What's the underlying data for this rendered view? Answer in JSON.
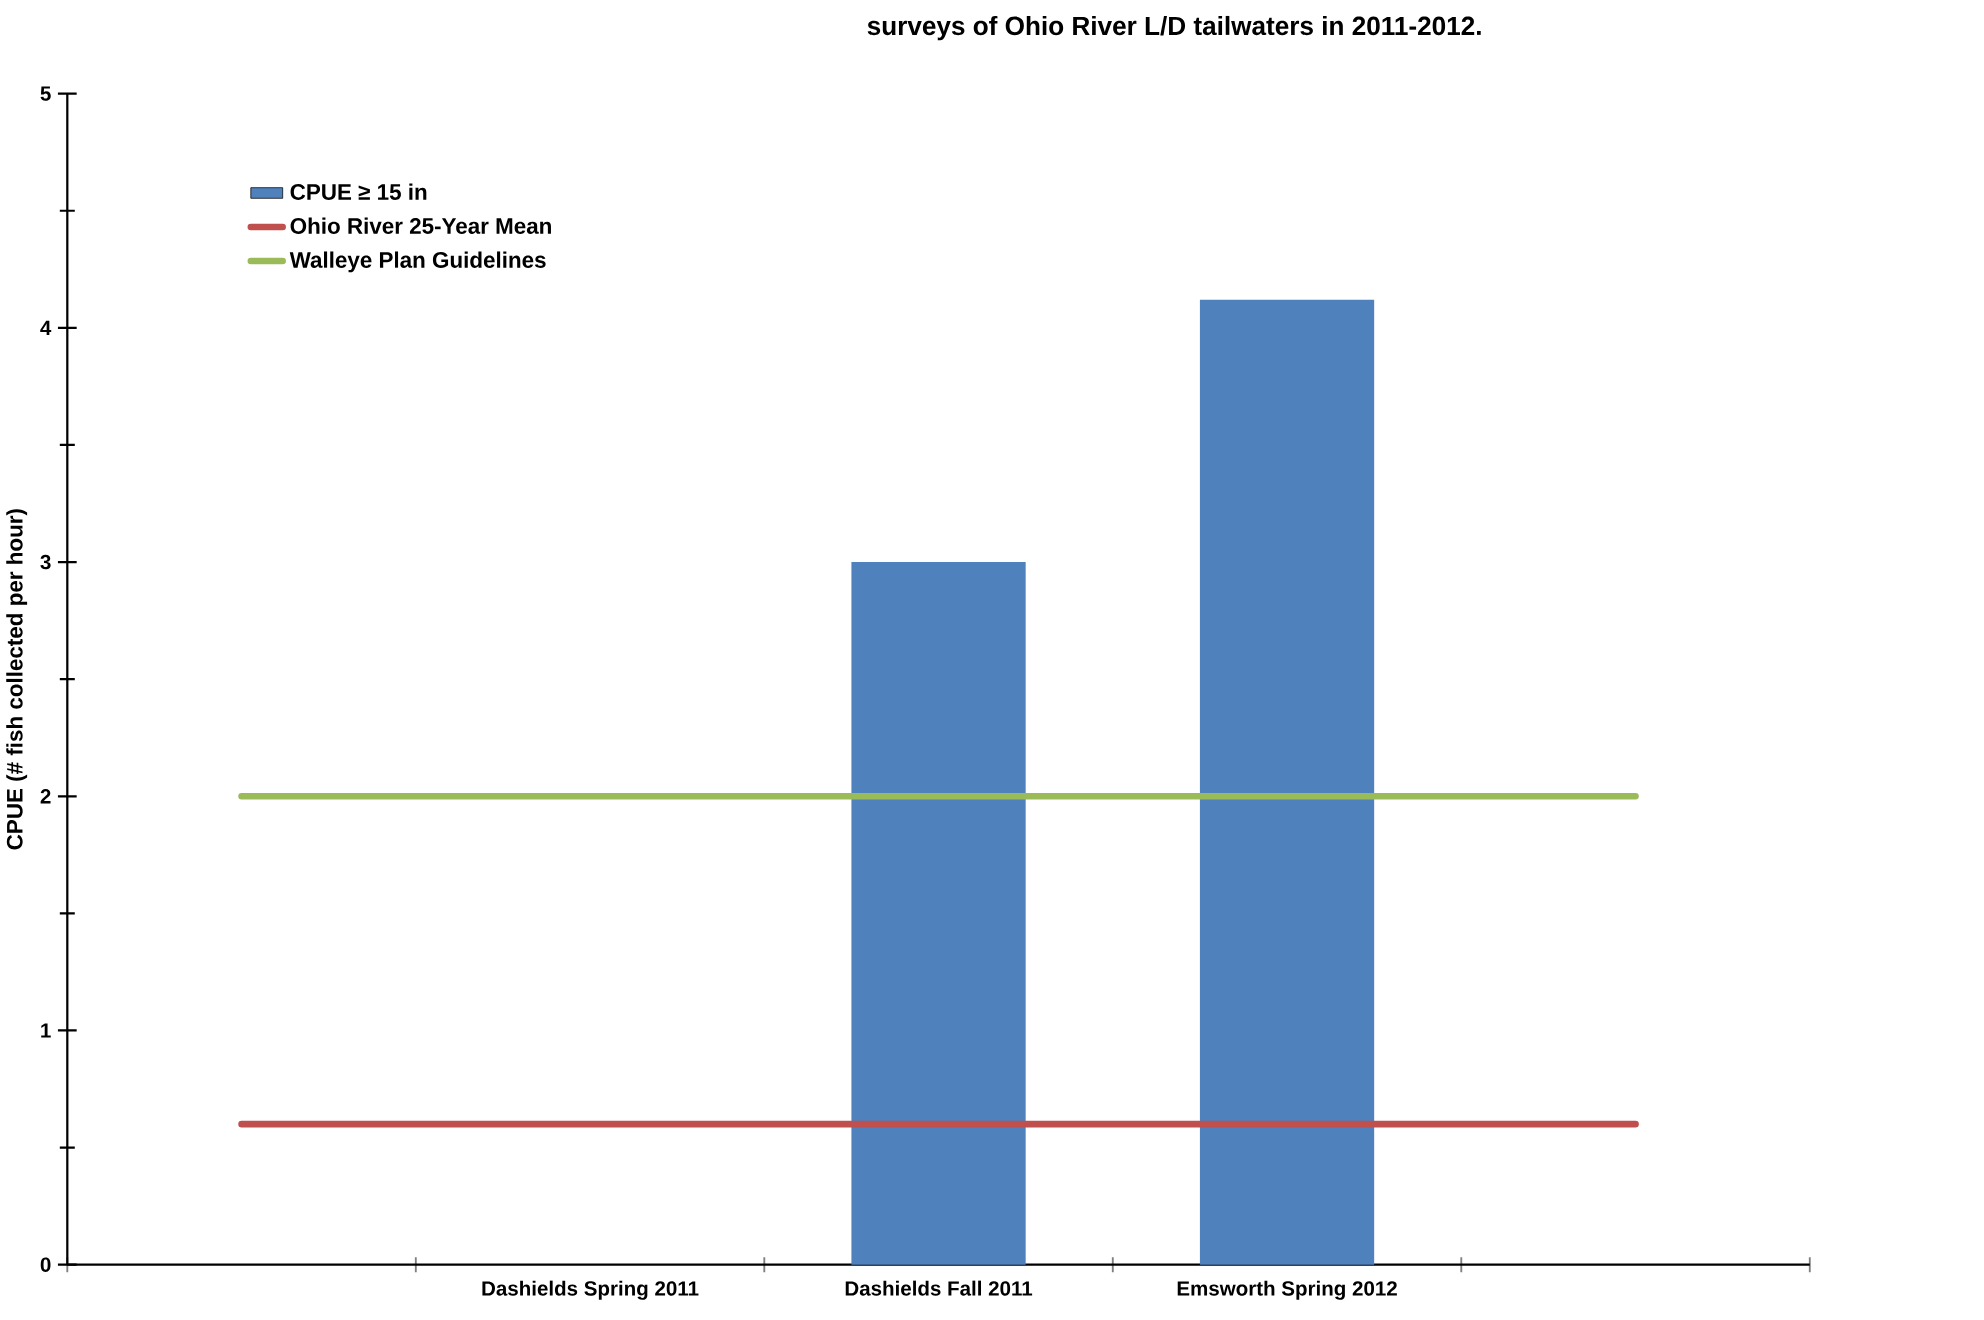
{
  "chart_data": {
    "type": "bar",
    "title": "surveys of Ohio River L/D tailwaters in 2011-2012.",
    "ylabel": "CPUE  (# fish  collected  per  hour)",
    "categories": [
      null,
      "Dashields Spring 2011",
      "Dashields Fall 2011",
      "Emsworth Spring 2012",
      null
    ],
    "series": [
      {
        "name": "CPUE ≥ 15 in",
        "color": "#4f81bd",
        "values": [
          null,
          null,
          3.0,
          4.12,
          null
        ]
      },
      {
        "name": "Ohio River 25-Year Mean",
        "type": "line",
        "color": "#c0504d",
        "values": [
          0.6,
          0.6,
          0.6,
          0.6,
          0.6
        ]
      },
      {
        "name": "Walleye Plan Guidelines",
        "type": "line",
        "color": "#9bbb59",
        "values": [
          2,
          2,
          2,
          2,
          2
        ]
      }
    ],
    "ylim": [
      0,
      5
    ],
    "yticks": [
      0,
      1,
      2,
      3,
      4,
      5
    ],
    "grid": false,
    "legend": "top left",
    "marker": "none"
  }
}
